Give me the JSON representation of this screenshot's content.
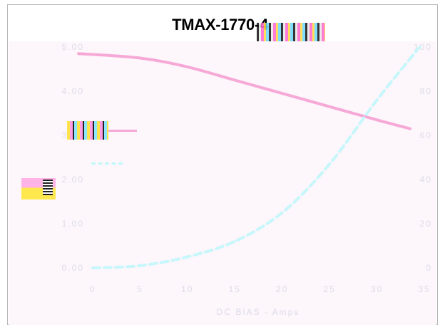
{
  "chart_data": {
    "type": "line",
    "title": "TMAX-1770-4",
    "xlabel": "DC BIAS - Amps",
    "ylabel_left": "",
    "ylabel_right": "",
    "xlim": [
      0,
      35
    ],
    "ylim_left": [
      0,
      5
    ],
    "ylim_right": [
      0,
      100
    ],
    "x_ticks": [
      "0",
      "5",
      "10",
      "15",
      "20",
      "25",
      "30",
      "35"
    ],
    "y_left_ticks": [
      "0.00",
      "1.00",
      "2.00",
      "3.00",
      "4.00",
      "5.00"
    ],
    "y_right_ticks": [
      "0",
      "20",
      "40",
      "60",
      "80",
      "100"
    ],
    "legend_position": "upper-left",
    "series": [
      {
        "name": "",
        "axis": "left",
        "color": "#f6a9d6",
        "style": "solid",
        "x": [
          -1.5,
          5,
          10,
          15,
          20,
          25,
          30,
          33.5
        ],
        "y": [
          4.85,
          4.75,
          4.55,
          4.25,
          3.95,
          3.65,
          3.35,
          3.15
        ]
      },
      {
        "name": "",
        "axis": "right",
        "color": "#c6f7fb",
        "style": "dashed",
        "x": [
          0,
          5,
          10,
          15,
          20,
          25,
          30,
          34.5
        ],
        "y": [
          0,
          1,
          5,
          12,
          25,
          47,
          76,
          100
        ]
      }
    ]
  }
}
